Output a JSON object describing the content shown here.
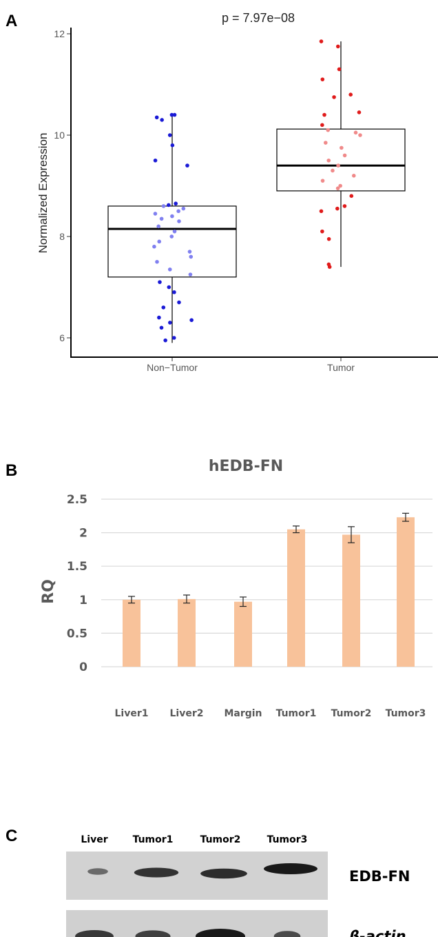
{
  "panels": {
    "a": "A",
    "b": "B",
    "c": "C"
  },
  "chart_data": [
    {
      "type": "boxplot",
      "annotation": "p =  7.97e−08",
      "ylabel": "Normalized Expression",
      "ylim": [
        5.7,
        12.2
      ],
      "yticks": [
        6,
        8,
        10,
        12
      ],
      "categories": [
        "Non−Tumor",
        "Tumor"
      ],
      "boxes": [
        {
          "category": "Non−Tumor",
          "min": 5.9,
          "q1": 7.2,
          "median": 8.15,
          "q3": 8.6,
          "max": 10.4,
          "color": "#1a1ad6",
          "light_color": "#8080f0",
          "points": [
            10.4,
            10.4,
            10.35,
            10.3,
            10.0,
            9.8,
            9.5,
            9.4,
            8.65,
            8.62,
            8.6,
            8.55,
            8.5,
            8.45,
            8.4,
            8.35,
            8.3,
            8.2,
            8.1,
            8.0,
            7.9,
            7.8,
            7.7,
            7.6,
            7.5,
            7.35,
            7.25,
            7.1,
            7.0,
            6.9,
            6.7,
            6.6,
            6.4,
            6.35,
            6.3,
            6.2,
            6.0,
            5.95
          ]
        },
        {
          "category": "Tumor",
          "min": 7.4,
          "q1": 8.9,
          "median": 9.4,
          "q3": 10.12,
          "max": 11.85,
          "color": "#e01b1b",
          "light_color": "#f08a8a",
          "points": [
            11.85,
            11.75,
            11.3,
            11.1,
            10.8,
            10.75,
            10.45,
            10.4,
            10.2,
            10.1,
            10.05,
            10.0,
            9.85,
            9.75,
            9.6,
            9.5,
            9.4,
            9.3,
            9.2,
            9.1,
            9.0,
            8.95,
            8.8,
            8.6,
            8.55,
            8.5,
            8.1,
            7.95,
            7.45,
            7.4
          ]
        }
      ]
    },
    {
      "type": "bar",
      "title": "hEDB-FN",
      "ylabel": "RQ",
      "ylim": [
        0,
        2.5
      ],
      "yticks": [
        "0",
        "0.5",
        "1",
        "1.5",
        "2",
        "2.5"
      ],
      "grid": true,
      "bar_color": "#f8c29a",
      "categories": [
        "Liver1",
        "Liver2",
        "Margin",
        "Tumor1",
        "Tumor2",
        "Tumor3"
      ],
      "values": [
        1.0,
        1.01,
        0.97,
        2.05,
        1.97,
        2.23
      ],
      "errors": [
        0.05,
        0.06,
        0.07,
        0.05,
        0.12,
        0.06
      ]
    }
  ],
  "blot": {
    "lanes": [
      "Liver",
      "Tumor1",
      "Tumor2",
      "Tumor3"
    ],
    "rows": [
      {
        "label": "EDB-FN",
        "intensity": [
          0.35,
          0.8,
          0.85,
          1.0
        ]
      },
      {
        "label": "β-actin",
        "intensity": [
          0.75,
          0.7,
          1.0,
          0.6
        ]
      }
    ]
  }
}
